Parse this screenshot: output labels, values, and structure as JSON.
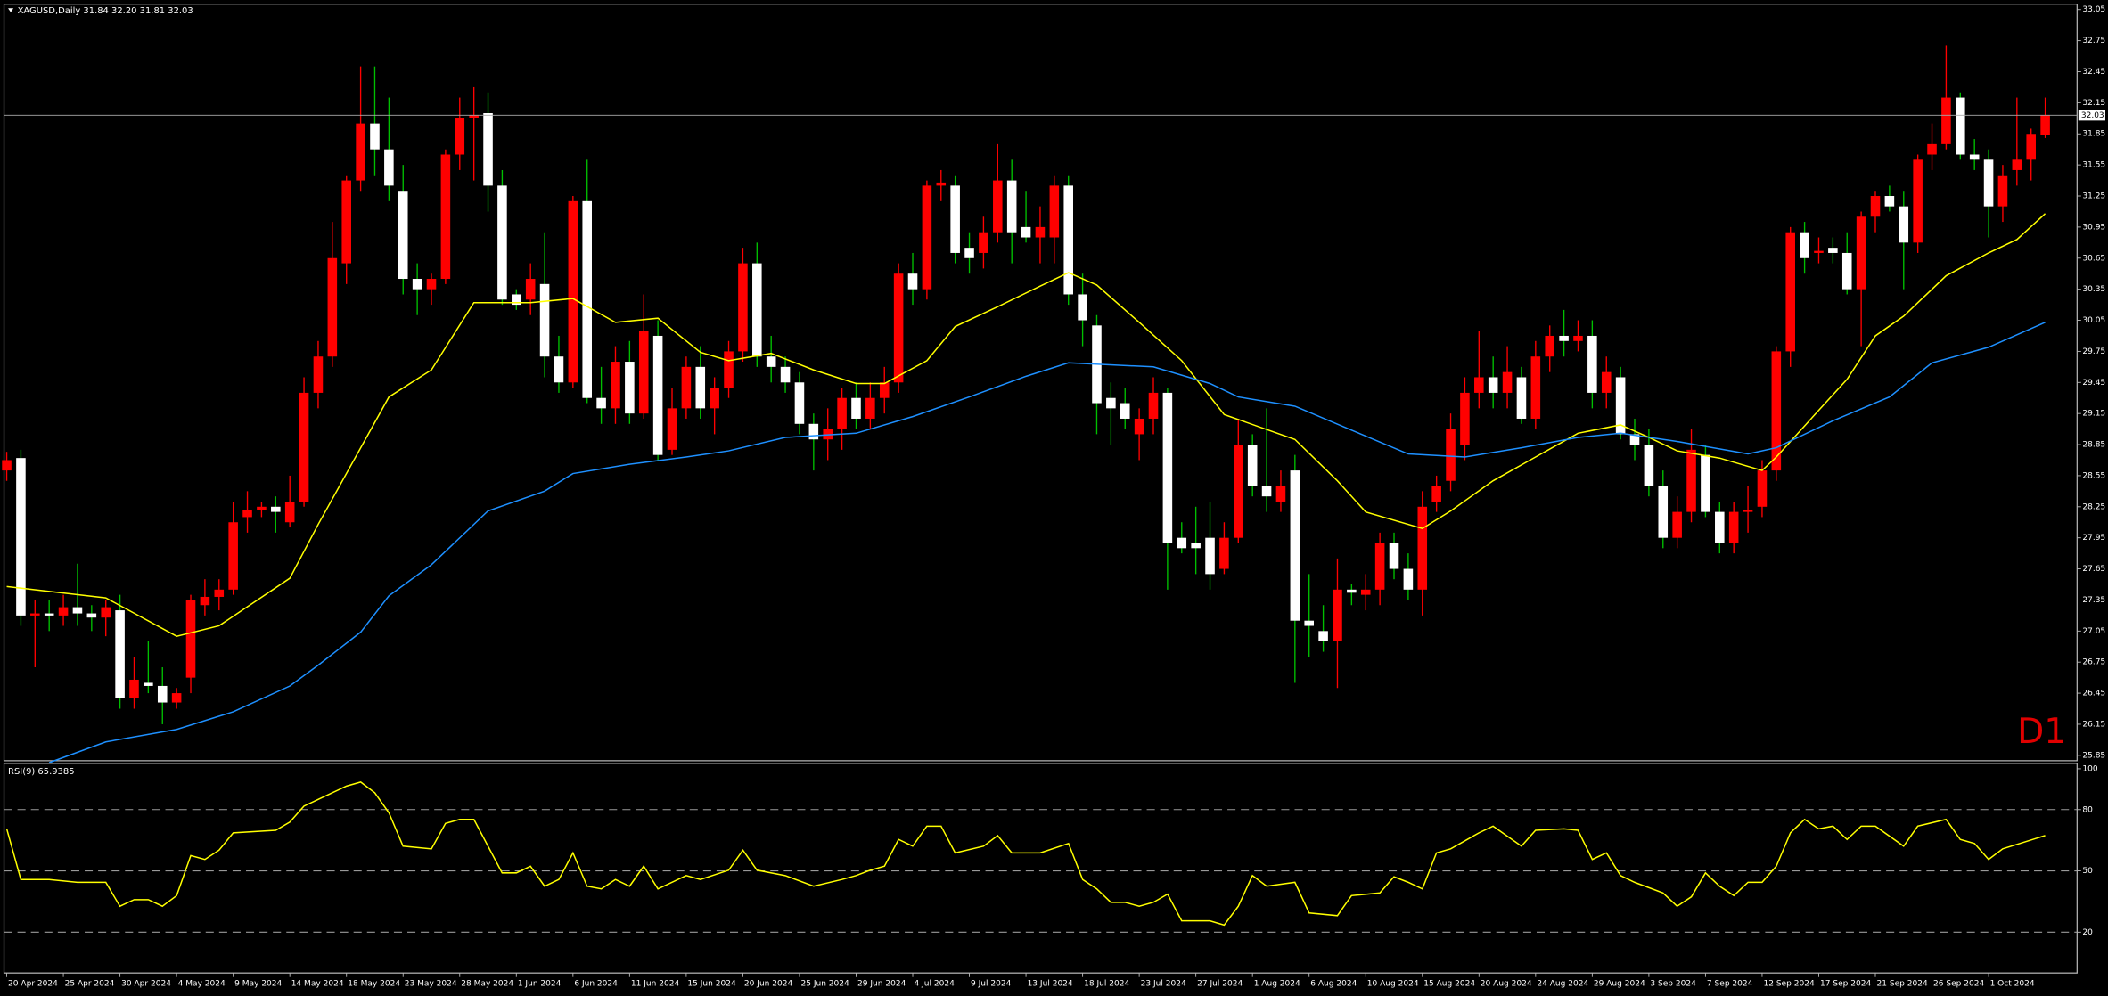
{
  "chart_data": {
    "type": "candlestick",
    "title": "XAGUSD,Daily  31.84 32.20 31.81 32.03",
    "timeframe_label": "D1",
    "last_price": 32.03,
    "up_color": "#ff0000",
    "down_color": "#ffffff",
    "up_wick_color": "#ff0000",
    "down_wick_color": "#00c000",
    "ylim": [
      25.85,
      33.05
    ],
    "yticks": [
      33.05,
      32.75,
      32.45,
      32.15,
      31.85,
      31.55,
      31.25,
      30.95,
      30.65,
      30.35,
      30.05,
      29.75,
      29.45,
      29.15,
      28.85,
      28.55,
      28.25,
      27.95,
      27.65,
      27.35,
      27.05,
      26.75,
      26.45,
      26.15,
      25.85
    ],
    "categories": [
      "20 Apr 2024",
      null,
      null,
      null,
      "25 Apr 2024",
      null,
      null,
      null,
      "30 Apr 2024",
      null,
      null,
      null,
      "4 May 2024",
      null,
      null,
      null,
      "9 May 2024",
      null,
      null,
      null,
      "14 May 2024",
      null,
      null,
      null,
      "18 May 2024",
      null,
      null,
      null,
      "23 May 2024",
      null,
      null,
      null,
      "28 May 2024",
      null,
      null,
      null,
      "1 Jun 2024",
      null,
      null,
      null,
      "6 Jun 2024",
      null,
      null,
      null,
      "11 Jun 2024",
      null,
      null,
      null,
      "15 Jun 2024",
      null,
      null,
      null,
      "20 Jun 2024",
      null,
      null,
      null,
      "25 Jun 2024",
      null,
      null,
      null,
      "29 Jun 2024",
      null,
      null,
      null,
      "4 Jul 2024",
      null,
      null,
      null,
      "9 Jul 2024",
      null,
      null,
      null,
      "13 Jul 2024",
      null,
      null,
      null,
      "18 Jul 2024",
      null,
      null,
      null,
      "23 Jul 2024",
      null,
      null,
      null,
      "27 Jul 2024",
      null,
      null,
      null,
      "1 Aug 2024",
      null,
      null,
      null,
      "6 Aug 2024",
      null,
      null,
      null,
      "10 Aug 2024",
      null,
      null,
      null,
      "15 Aug 2024",
      null,
      null,
      null,
      "20 Aug 2024",
      null,
      null,
      null,
      "24 Aug 2024",
      null,
      null,
      null,
      "29 Aug 2024",
      null,
      null,
      null,
      "3 Sep 2024",
      null,
      null,
      null,
      "7 Sep 2024",
      null,
      null,
      null,
      "12 Sep 2024",
      null,
      null,
      null,
      "17 Sep 2024",
      null,
      null,
      null,
      "21 Sep 2024",
      null,
      null,
      null,
      "26 Sep 2024",
      null,
      null,
      null,
      "1 Oct 2024",
      null,
      null,
      null,
      null
    ],
    "candles": [
      [
        28.6,
        28.78,
        28.5,
        28.7
      ],
      [
        28.72,
        28.8,
        27.1,
        27.2
      ],
      [
        27.2,
        27.35,
        26.7,
        27.22
      ],
      [
        27.22,
        27.35,
        27.05,
        27.2
      ],
      [
        27.2,
        27.4,
        27.1,
        27.28
      ],
      [
        27.28,
        27.7,
        27.1,
        27.22
      ],
      [
        27.22,
        27.3,
        27.05,
        27.18
      ],
      [
        27.18,
        27.35,
        27.0,
        27.28
      ],
      [
        27.25,
        27.4,
        26.3,
        26.4
      ],
      [
        26.4,
        26.8,
        26.3,
        26.58
      ],
      [
        26.55,
        26.95,
        26.45,
        26.52
      ],
      [
        26.52,
        26.7,
        26.15,
        26.36
      ],
      [
        26.36,
        26.5,
        26.3,
        26.45
      ],
      [
        26.6,
        27.4,
        26.45,
        27.35
      ],
      [
        27.3,
        27.55,
        27.2,
        27.38
      ],
      [
        27.38,
        27.55,
        27.25,
        27.45
      ],
      [
        27.45,
        28.3,
        27.4,
        28.1
      ],
      [
        28.15,
        28.4,
        28.0,
        28.22
      ],
      [
        28.22,
        28.3,
        28.15,
        28.25
      ],
      [
        28.25,
        28.35,
        28.0,
        28.2
      ],
      [
        28.1,
        28.55,
        28.05,
        28.3
      ],
      [
        28.3,
        29.5,
        28.25,
        29.35
      ],
      [
        29.35,
        29.85,
        29.2,
        29.7
      ],
      [
        29.7,
        31.0,
        29.6,
        30.65
      ],
      [
        30.6,
        31.45,
        30.4,
        31.4
      ],
      [
        31.4,
        32.5,
        31.3,
        31.95
      ],
      [
        31.95,
        32.5,
        31.45,
        31.7
      ],
      [
        31.7,
        32.2,
        31.2,
        31.35
      ],
      [
        31.3,
        31.55,
        30.3,
        30.45
      ],
      [
        30.45,
        30.6,
        30.1,
        30.35
      ],
      [
        30.35,
        30.5,
        30.2,
        30.45
      ],
      [
        30.45,
        31.7,
        30.4,
        31.65
      ],
      [
        31.65,
        32.2,
        31.5,
        32.0
      ],
      [
        32.0,
        32.3,
        31.4,
        32.03
      ],
      [
        32.05,
        32.25,
        31.1,
        31.35
      ],
      [
        31.35,
        31.5,
        30.2,
        30.25
      ],
      [
        30.3,
        30.35,
        30.15,
        30.2
      ],
      [
        30.25,
        30.6,
        30.1,
        30.45
      ],
      [
        30.4,
        30.9,
        29.5,
        29.7
      ],
      [
        29.7,
        29.9,
        29.35,
        29.45
      ],
      [
        29.45,
        31.25,
        29.4,
        31.2
      ],
      [
        31.2,
        31.6,
        29.25,
        29.3
      ],
      [
        29.3,
        29.6,
        29.05,
        29.2
      ],
      [
        29.2,
        29.8,
        29.05,
        29.65
      ],
      [
        29.65,
        29.85,
        29.05,
        29.15
      ],
      [
        29.15,
        30.3,
        29.1,
        29.95
      ],
      [
        29.9,
        30.05,
        28.7,
        28.75
      ],
      [
        28.8,
        29.4,
        28.75,
        29.2
      ],
      [
        29.2,
        29.7,
        29.1,
        29.6
      ],
      [
        29.6,
        29.8,
        29.1,
        29.2
      ],
      [
        29.2,
        29.5,
        28.95,
        29.4
      ],
      [
        29.4,
        29.85,
        29.3,
        29.75
      ],
      [
        29.75,
        30.75,
        29.65,
        30.6
      ],
      [
        30.6,
        30.8,
        29.6,
        29.7
      ],
      [
        29.7,
        29.9,
        29.45,
        29.6
      ],
      [
        29.6,
        29.7,
        29.35,
        29.45
      ],
      [
        29.45,
        29.55,
        28.95,
        29.05
      ],
      [
        29.05,
        29.15,
        28.6,
        28.9
      ],
      [
        28.9,
        29.2,
        28.7,
        29.0
      ],
      [
        29.0,
        29.4,
        28.8,
        29.3
      ],
      [
        29.3,
        29.45,
        29.0,
        29.1
      ],
      [
        29.1,
        29.45,
        29.0,
        29.3
      ],
      [
        29.3,
        29.6,
        29.15,
        29.45
      ],
      [
        29.45,
        30.6,
        29.35,
        30.5
      ],
      [
        30.5,
        30.7,
        30.2,
        30.35
      ],
      [
        30.35,
        31.4,
        30.25,
        31.35
      ],
      [
        31.35,
        31.5,
        31.2,
        31.38
      ],
      [
        31.35,
        31.45,
        30.6,
        30.7
      ],
      [
        30.75,
        30.9,
        30.5,
        30.65
      ],
      [
        30.7,
        31.05,
        30.55,
        30.9
      ],
      [
        30.9,
        31.75,
        30.8,
        31.4
      ],
      [
        31.4,
        31.6,
        30.6,
        30.9
      ],
      [
        30.95,
        31.3,
        30.8,
        30.85
      ],
      [
        30.85,
        31.15,
        30.6,
        30.95
      ],
      [
        30.85,
        31.45,
        30.6,
        31.35
      ],
      [
        31.35,
        31.45,
        30.2,
        30.3
      ],
      [
        30.3,
        30.5,
        29.8,
        30.05
      ],
      [
        30.0,
        30.1,
        28.95,
        29.25
      ],
      [
        29.3,
        29.45,
        28.85,
        29.2
      ],
      [
        29.25,
        29.4,
        29.0,
        29.1
      ],
      [
        28.95,
        29.2,
        28.7,
        29.1
      ],
      [
        29.1,
        29.5,
        28.95,
        29.35
      ],
      [
        29.35,
        29.4,
        27.45,
        27.9
      ],
      [
        27.95,
        28.1,
        27.8,
        27.85
      ],
      [
        27.9,
        28.25,
        27.6,
        27.85
      ],
      [
        27.95,
        28.3,
        27.45,
        27.6
      ],
      [
        27.65,
        28.1,
        27.6,
        27.95
      ],
      [
        27.95,
        29.1,
        27.9,
        28.85
      ],
      [
        28.85,
        28.95,
        28.35,
        28.45
      ],
      [
        28.45,
        29.2,
        28.2,
        28.35
      ],
      [
        28.3,
        28.6,
        28.2,
        28.45
      ],
      [
        28.6,
        28.75,
        26.55,
        27.15
      ],
      [
        27.15,
        27.6,
        26.8,
        27.1
      ],
      [
        27.05,
        27.3,
        26.85,
        26.95
      ],
      [
        26.95,
        27.75,
        26.5,
        27.45
      ],
      [
        27.45,
        27.5,
        27.3,
        27.42
      ],
      [
        27.4,
        27.6,
        27.25,
        27.45
      ],
      [
        27.45,
        28.0,
        27.3,
        27.9
      ],
      [
        27.9,
        28.0,
        27.55,
        27.65
      ],
      [
        27.65,
        27.8,
        27.35,
        27.45
      ],
      [
        27.45,
        28.4,
        27.2,
        28.25
      ],
      [
        28.3,
        28.55,
        28.2,
        28.45
      ],
      [
        28.5,
        29.15,
        28.4,
        29.0
      ],
      [
        28.85,
        29.5,
        28.7,
        29.35
      ],
      [
        29.35,
        29.95,
        29.2,
        29.5
      ],
      [
        29.5,
        29.7,
        29.2,
        29.35
      ],
      [
        29.35,
        29.8,
        29.2,
        29.55
      ],
      [
        29.5,
        29.6,
        29.05,
        29.1
      ],
      [
        29.1,
        29.85,
        29.0,
        29.7
      ],
      [
        29.7,
        30.0,
        29.55,
        29.9
      ],
      [
        29.9,
        30.15,
        29.7,
        29.85
      ],
      [
        29.85,
        30.05,
        29.75,
        29.9
      ],
      [
        29.9,
        30.05,
        29.2,
        29.35
      ],
      [
        29.35,
        29.7,
        29.2,
        29.55
      ],
      [
        29.5,
        29.6,
        28.9,
        28.95
      ],
      [
        28.95,
        29.1,
        28.7,
        28.85
      ],
      [
        28.85,
        29.0,
        28.35,
        28.45
      ],
      [
        28.45,
        28.6,
        27.85,
        27.95
      ],
      [
        27.95,
        28.35,
        27.85,
        28.2
      ],
      [
        28.2,
        29.0,
        28.1,
        28.8
      ],
      [
        28.75,
        28.85,
        28.15,
        28.2
      ],
      [
        28.2,
        28.3,
        27.8,
        27.9
      ],
      [
        27.9,
        28.3,
        27.8,
        28.2
      ],
      [
        28.2,
        28.45,
        28.0,
        28.22
      ],
      [
        28.25,
        28.7,
        28.15,
        28.6
      ],
      [
        28.6,
        29.8,
        28.5,
        29.75
      ],
      [
        29.75,
        30.95,
        29.6,
        30.9
      ],
      [
        30.9,
        31.0,
        30.5,
        30.65
      ],
      [
        30.7,
        30.85,
        30.6,
        30.72
      ],
      [
        30.75,
        30.85,
        30.6,
        30.7
      ],
      [
        30.7,
        30.9,
        30.3,
        30.35
      ],
      [
        30.35,
        31.1,
        29.8,
        31.05
      ],
      [
        31.05,
        31.3,
        30.9,
        31.25
      ],
      [
        31.25,
        31.35,
        31.1,
        31.15
      ],
      [
        31.15,
        31.3,
        30.35,
        30.8
      ],
      [
        30.8,
        31.65,
        30.7,
        31.6
      ],
      [
        31.65,
        31.95,
        31.5,
        31.75
      ],
      [
        31.75,
        32.7,
        31.7,
        32.2
      ],
      [
        32.2,
        32.25,
        31.6,
        31.65
      ],
      [
        31.65,
        31.8,
        31.5,
        31.6
      ],
      [
        31.6,
        31.7,
        30.85,
        31.15
      ],
      [
        31.15,
        31.55,
        31.0,
        31.45
      ],
      [
        31.5,
        32.2,
        31.35,
        31.6
      ],
      [
        31.6,
        31.9,
        31.4,
        31.85
      ],
      [
        31.84,
        32.2,
        31.81,
        32.03
      ]
    ],
    "series": [
      {
        "color": "#ffff00",
        "x": [
          0,
          7,
          12,
          15,
          20,
          22,
          27,
          30,
          33,
          37,
          40,
          43,
          46,
          49,
          51,
          54,
          57,
          60,
          62,
          65,
          67,
          70,
          73,
          75,
          77,
          80,
          83,
          86,
          91,
          94,
          96,
          100,
          102,
          105,
          108,
          111,
          114,
          116,
          118,
          121,
          124,
          125,
          128,
          130,
          132,
          134,
          137,
          140,
          142,
          144
        ],
        "values": [
          27.48,
          27.37,
          27.0,
          27.1,
          27.56,
          28.08,
          29.31,
          29.57,
          30.22,
          30.22,
          30.26,
          30.03,
          30.07,
          29.74,
          29.66,
          29.73,
          29.57,
          29.44,
          29.44,
          29.66,
          29.99,
          30.18,
          30.38,
          30.51,
          30.39,
          30.03,
          29.66,
          29.14,
          28.9,
          28.5,
          28.2,
          28.04,
          28.21,
          28.5,
          28.73,
          28.96,
          29.04,
          28.92,
          28.79,
          28.72,
          28.6,
          28.73,
          29.18,
          29.48,
          29.9,
          30.09,
          30.48,
          30.7,
          30.83,
          31.08
        ]
      },
      {
        "color": "#1e90ff",
        "x": [
          3,
          7,
          12,
          16,
          20,
          22,
          25,
          27,
          30,
          34,
          38,
          40,
          44,
          48,
          51,
          55,
          60,
          64,
          68,
          72,
          75,
          81,
          85,
          87,
          91,
          95,
          99,
          103,
          107,
          111,
          114,
          118,
          123,
          125,
          129,
          133,
          136,
          140,
          144
        ],
        "values": [
          25.78,
          25.98,
          26.1,
          26.27,
          26.52,
          26.72,
          27.04,
          27.39,
          27.69,
          28.21,
          28.4,
          28.57,
          28.66,
          28.73,
          28.79,
          28.92,
          28.96,
          29.12,
          29.31,
          29.51,
          29.64,
          29.6,
          29.44,
          29.31,
          29.22,
          28.99,
          28.76,
          28.73,
          28.82,
          28.92,
          28.96,
          28.88,
          28.76,
          28.82,
          29.08,
          29.31,
          29.64,
          29.79,
          30.03
        ]
      }
    ],
    "rsi": {
      "title": "RSI(9) 65.9385",
      "color": "#ffff00",
      "ylim": [
        0,
        100
      ],
      "yticks": [
        100,
        80,
        50,
        20
      ],
      "x": [
        0,
        1,
        3,
        5,
        7,
        8,
        9,
        10,
        11,
        12,
        13,
        14,
        15,
        16,
        19,
        20,
        21,
        22,
        24,
        25,
        26,
        27,
        28,
        30,
        31,
        32,
        33,
        35,
        36,
        37,
        38,
        39,
        40,
        41,
        42,
        43,
        44,
        45,
        46,
        48,
        49,
        51,
        52,
        53,
        55,
        57,
        59,
        60,
        61,
        62,
        63,
        64,
        65,
        66,
        67,
        69,
        70,
        71,
        73,
        75,
        76,
        77,
        78,
        79,
        80,
        81,
        82,
        83,
        85,
        86,
        87,
        88,
        89,
        91,
        92,
        94,
        95,
        97,
        98,
        99,
        100,
        101,
        102,
        104,
        105,
        107,
        108,
        110,
        111,
        112,
        113,
        114,
        115,
        117,
        118,
        119,
        120,
        121,
        122,
        123,
        124,
        125,
        126,
        127,
        128,
        129,
        130,
        131,
        132,
        134,
        135,
        137,
        138,
        139,
        140,
        141,
        144
      ],
      "values": [
        70.6,
        45.8,
        45.8,
        44.4,
        44.4,
        32.7,
        35.9,
        35.9,
        32.7,
        37.9,
        57.5,
        55.6,
        60.1,
        68.6,
        69.9,
        73.9,
        81.7,
        85.0,
        91.5,
        93.5,
        88.2,
        78.4,
        62.1,
        60.8,
        73.2,
        75.2,
        75.2,
        49.0,
        49.0,
        52.3,
        42.5,
        45.8,
        58.8,
        42.5,
        41.2,
        45.8,
        42.5,
        52.3,
        41.2,
        47.7,
        45.8,
        50.3,
        60.1,
        50.3,
        47.7,
        42.5,
        45.8,
        47.7,
        50.3,
        52.3,
        65.4,
        62.1,
        71.9,
        71.9,
        58.8,
        62.1,
        67.3,
        58.8,
        58.8,
        63.4,
        45.8,
        41.2,
        34.6,
        34.6,
        32.7,
        34.6,
        38.6,
        25.5,
        25.5,
        23.5,
        32.7,
        47.7,
        42.5,
        44.4,
        29.4,
        28.1,
        37.9,
        39.2,
        47.1,
        44.4,
        41.2,
        58.8,
        60.8,
        68.6,
        71.9,
        62.1,
        69.9,
        70.6,
        69.9,
        55.6,
        58.8,
        47.7,
        44.4,
        39.2,
        32.7,
        37.3,
        49.0,
        42.5,
        37.9,
        44.4,
        44.4,
        52.3,
        68.6,
        75.2,
        70.6,
        71.9,
        65.4,
        71.9,
        71.9,
        62.1,
        71.9,
        75.2,
        65.4,
        63.4,
        55.6,
        60.8,
        67.3
      ]
    }
  }
}
